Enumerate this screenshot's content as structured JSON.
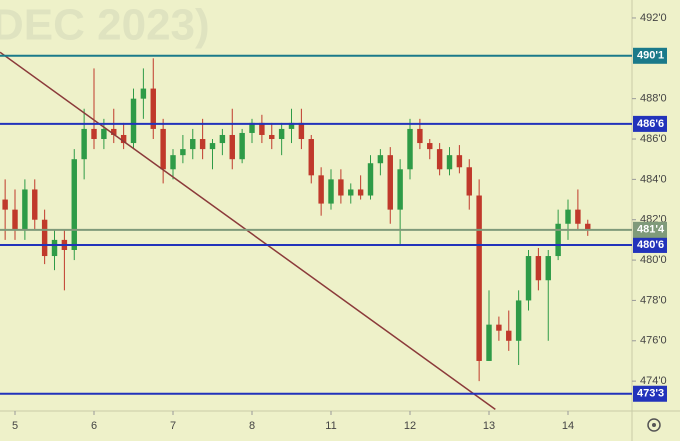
{
  "chart_data": {
    "type": "candlestick",
    "watermark": "DEC 2023)",
    "x": [
      -0.125,
      0,
      0.125,
      0.25,
      0.375,
      0.5,
      0.625,
      0.75,
      0.875,
      1,
      1.125,
      1.25,
      1.375,
      1.5,
      1.625,
      1.75,
      1.875,
      2,
      2.125,
      2.25,
      2.375,
      2.5,
      2.625,
      2.75,
      2.875,
      3,
      3.125,
      3.25,
      3.375,
      3.5,
      3.625,
      3.75,
      3.875,
      4,
      4.125,
      4.25,
      4.375,
      4.5,
      4.625,
      4.75,
      4.875,
      5,
      5.125,
      5.25,
      5.375,
      5.5,
      5.625,
      5.75,
      5.875,
      6,
      6.125,
      6.25,
      6.375,
      6.5,
      6.625,
      6.75,
      6.875,
      7,
      7.125,
      7.25
    ],
    "open": [
      483,
      482.5,
      481.5,
      483.5,
      482,
      480.2,
      481,
      480.5,
      485,
      486.5,
      486,
      486.5,
      486.2,
      485.8,
      488,
      488.5,
      486.5,
      484.5,
      485.2,
      485.5,
      486,
      485.5,
      485.8,
      486.2,
      485,
      486.3,
      486.8,
      486.2,
      486,
      486.5,
      486.8,
      486,
      484.2,
      482.8,
      484,
      483.2,
      483.5,
      483.2,
      484.8,
      485.2,
      482.5,
      484.5,
      486.5,
      485.8,
      485.5,
      484.5,
      485.2,
      484.6,
      483.2,
      475,
      476.8,
      476.5,
      476,
      478,
      480.2,
      479,
      480.2,
      481.8,
      482.5,
      481.8
    ],
    "high": [
      484,
      483.5,
      484,
      484,
      482.5,
      481.5,
      481.5,
      485.5,
      487.5,
      489.5,
      487,
      487.5,
      486.8,
      488.5,
      489.5,
      490,
      487,
      485.5,
      486.2,
      486.5,
      487,
      486,
      486.5,
      487.5,
      486.5,
      487,
      487.2,
      486.8,
      486.8,
      487.5,
      487.5,
      486.2,
      484.6,
      484.5,
      484.5,
      483.8,
      484.2,
      485.2,
      485.5,
      485.6,
      485,
      487,
      487,
      486,
      485.8,
      485.6,
      485.7,
      485,
      484,
      478.5,
      477.2,
      477.5,
      478.5,
      480.5,
      480.6,
      480.5,
      482.5,
      483,
      483.5,
      482
    ],
    "low": [
      481,
      481,
      481,
      481.5,
      479.8,
      479.5,
      478.5,
      480,
      484,
      485.5,
      485.5,
      485.8,
      485.5,
      485.5,
      487,
      486,
      483.8,
      484,
      484.8,
      485,
      485,
      484.5,
      485.2,
      484.5,
      484.8,
      485.8,
      485.8,
      485.5,
      485.2,
      485.8,
      485.5,
      483.8,
      482.2,
      482.5,
      482.8,
      482.8,
      483,
      483,
      484.2,
      481.8,
      480.8,
      484,
      485.5,
      485,
      484.2,
      484.2,
      484.3,
      482.5,
      474,
      475,
      476,
      475.5,
      474.8,
      477.5,
      478.5,
      476,
      480,
      481,
      481.5,
      481.2
    ],
    "close": [
      482.5,
      481.5,
      483.5,
      482,
      480.2,
      481,
      480.5,
      485,
      486.5,
      486,
      486.5,
      486.2,
      485.8,
      488,
      488.5,
      486.5,
      484.5,
      485.2,
      485.5,
      486,
      485.5,
      485.8,
      486.2,
      485,
      486.3,
      486.8,
      486.2,
      486,
      486.5,
      486.8,
      486,
      484.2,
      482.8,
      484,
      483.2,
      483.5,
      483.2,
      484.8,
      485.2,
      482.5,
      484.5,
      486.5,
      485.8,
      485.5,
      484.5,
      485.2,
      484.6,
      483.2,
      475,
      476.8,
      476.5,
      476,
      478,
      480.2,
      479,
      480.2,
      481.8,
      482.5,
      481.8,
      481.5
    ],
    "up_color": "#2e9b47",
    "down_color": "#c0392b",
    "xlim": [
      -0.19,
      7.81
    ],
    "xticks": [
      {
        "value": 0,
        "label": "5"
      },
      {
        "value": 1,
        "label": "6"
      },
      {
        "value": 2,
        "label": "7"
      },
      {
        "value": 3,
        "label": "8"
      },
      {
        "value": 4,
        "label": "11"
      },
      {
        "value": 5,
        "label": "12"
      },
      {
        "value": 6,
        "label": "13"
      },
      {
        "value": 7,
        "label": "14"
      }
    ],
    "ylim": [
      472.52,
      492.89
    ],
    "yticks": [
      {
        "value": 492,
        "label": "492'0"
      },
      {
        "value": 488,
        "label": "488'0"
      },
      {
        "value": 486,
        "label": "486'0"
      },
      {
        "value": 484,
        "label": "484'0"
      },
      {
        "value": 482,
        "label": "482'0"
      },
      {
        "value": 480,
        "label": "480'0"
      },
      {
        "value": 478,
        "label": "478'0"
      },
      {
        "value": 476,
        "label": "476'0"
      },
      {
        "value": 474,
        "label": "474'0"
      }
    ],
    "levels": [
      {
        "value": 490.125,
        "label": "490'1",
        "color": "#1a7a8a"
      },
      {
        "value": 486.75,
        "label": "486'6",
        "color": "#2233bb"
      },
      {
        "value": 480.75,
        "label": "480'6",
        "color": "#2233bb"
      },
      {
        "value": 473.375,
        "label": "473'3",
        "color": "#2233bb"
      },
      {
        "value": 481.5,
        "label": "481'4",
        "color": "#7f9a7a"
      }
    ],
    "trendline": {
      "x": [
        -0.19,
        6.08
      ],
      "y": [
        490.3,
        472.6
      ],
      "color": "#8b3a3a"
    }
  }
}
